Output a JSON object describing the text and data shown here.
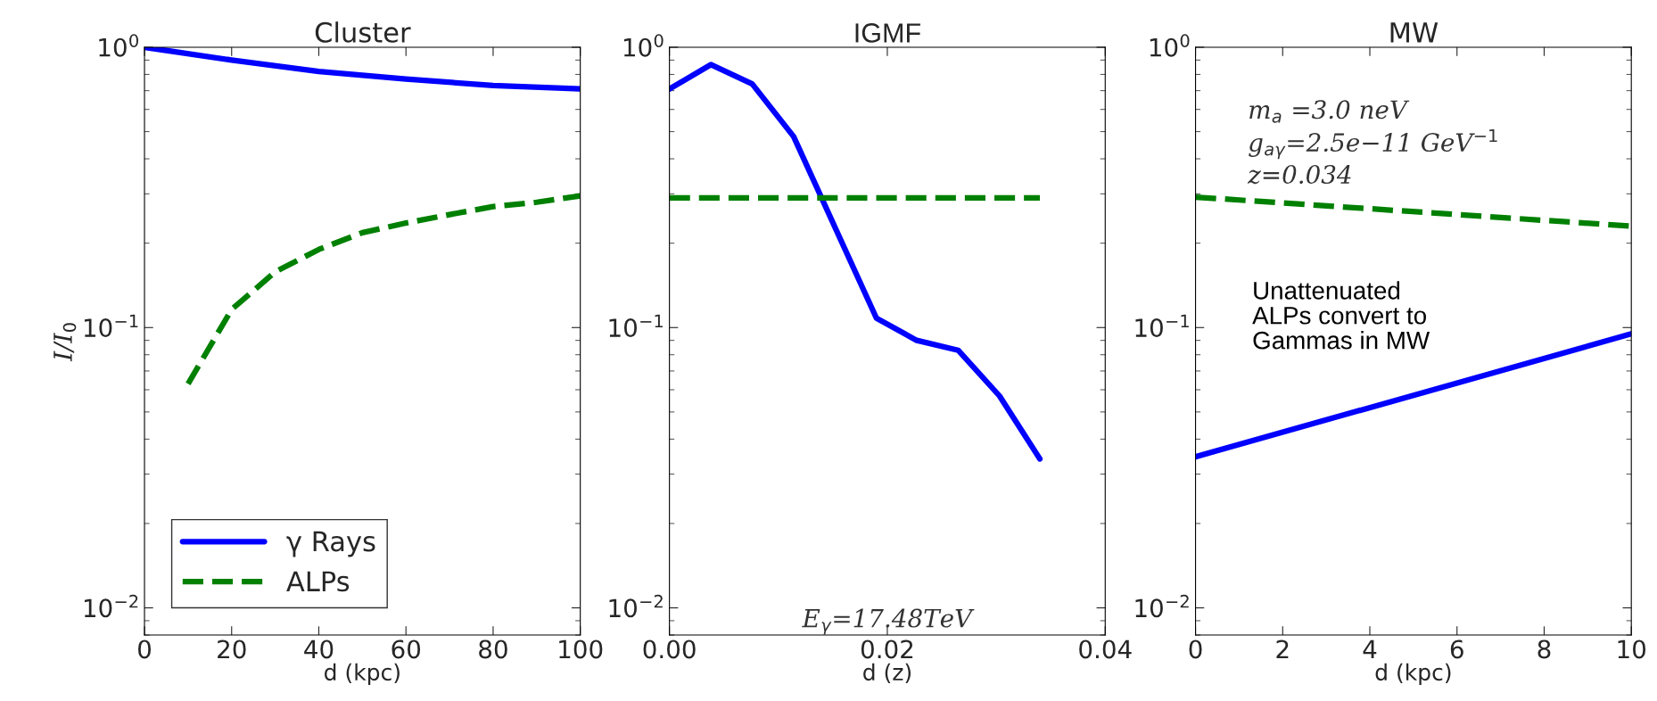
{
  "chart_data": [
    {
      "type": "line",
      "title": "Cluster",
      "xlabel": "d (kpc)",
      "ylabel": "I/I$_{0}$",
      "log": "y",
      "xlim": [
        0,
        100
      ],
      "xticks": [
        0,
        20,
        40,
        60,
        80,
        100
      ],
      "ylim": [
        0.008,
        1
      ],
      "yticks": [
        {
          "value": 0.01,
          "label": "10$^{−2}$"
        },
        {
          "value": 0.1,
          "label": "10$^{−1}$"
        },
        {
          "value": 1,
          "label": "10$^{0}$"
        }
      ],
      "legend": "bottom left",
      "grid": false,
      "series": [
        {
          "name": "γ Rays",
          "color": "#0000ff",
          "line_style": "solid",
          "x": [
            0,
            20,
            40,
            60,
            80,
            100
          ],
          "values": [
            1.0,
            0.9,
            0.82,
            0.77,
            0.73,
            0.71
          ]
        },
        {
          "name": "ALPs",
          "color": "#008000",
          "line_style": "dashed",
          "x": [
            10,
            20,
            30,
            40,
            50,
            60,
            70,
            80,
            90,
            100
          ],
          "values": [
            0.063,
            0.116,
            0.158,
            0.19,
            0.218,
            0.236,
            0.253,
            0.27,
            0.28,
            0.295
          ]
        }
      ]
    },
    {
      "type": "line",
      "title": "IGMF",
      "xlabel": "d (z)",
      "log": "y",
      "xlim": [
        0,
        0.04
      ],
      "xticks": [
        {
          "value": 0,
          "label": "0.00"
        },
        {
          "value": 0.02,
          "label": "0.02"
        },
        {
          "value": 0.04,
          "label": "0.04"
        }
      ],
      "ylim": [
        0.008,
        1
      ],
      "yticks": [
        {
          "value": 0.01,
          "label": "10$^{−2}$"
        },
        {
          "value": 0.1,
          "label": "10$^{−1}$"
        },
        {
          "value": 1,
          "label": "10$^{0}$"
        }
      ],
      "grid": false,
      "annotations": [
        "E$_{γ}$=17.48TeV"
      ],
      "series": [
        {
          "color": "#0000ff",
          "line_style": "solid",
          "x": [
            0,
            0.0038,
            0.0076,
            0.0114,
            0.019,
            0.0227,
            0.0265,
            0.0303,
            0.034
          ],
          "values": [
            0.71,
            0.867,
            0.74,
            0.48,
            0.108,
            0.09,
            0.083,
            0.057,
            0.034
          ]
        },
        {
          "color": "#008000",
          "line_style": "dashed",
          "x": [
            0,
            0.034
          ],
          "values": [
            0.29,
            0.29
          ]
        }
      ]
    },
    {
      "type": "line",
      "title": "MW",
      "xlabel": "d (kpc)",
      "log": "y",
      "xlim": [
        0,
        10
      ],
      "xticks": [
        0,
        2,
        4,
        6,
        8,
        10
      ],
      "ylim": [
        0.008,
        1
      ],
      "yticks": [
        {
          "value": 0.01,
          "label": "10$^{−2}$"
        },
        {
          "value": 0.1,
          "label": "10$^{−1}$"
        },
        {
          "value": 1,
          "label": "10$^{0}$"
        }
      ],
      "grid": false,
      "annotations": [
        "m$_{a}$ =3.0 neV",
        "g$_{aγ}$=2.5e−11 GeV$^{−1}$",
        "z=0.034",
        "Unattenuated\nALPs convert to\nGammas in MW"
      ],
      "series": [
        {
          "color": "#0000ff",
          "line_style": "solid",
          "x": [
            0,
            10
          ],
          "values": [
            0.0346,
            0.095
          ]
        },
        {
          "color": "#008000",
          "line_style": "dashed",
          "x": [
            0,
            10
          ],
          "values": [
            0.292,
            0.23
          ]
        }
      ]
    }
  ]
}
